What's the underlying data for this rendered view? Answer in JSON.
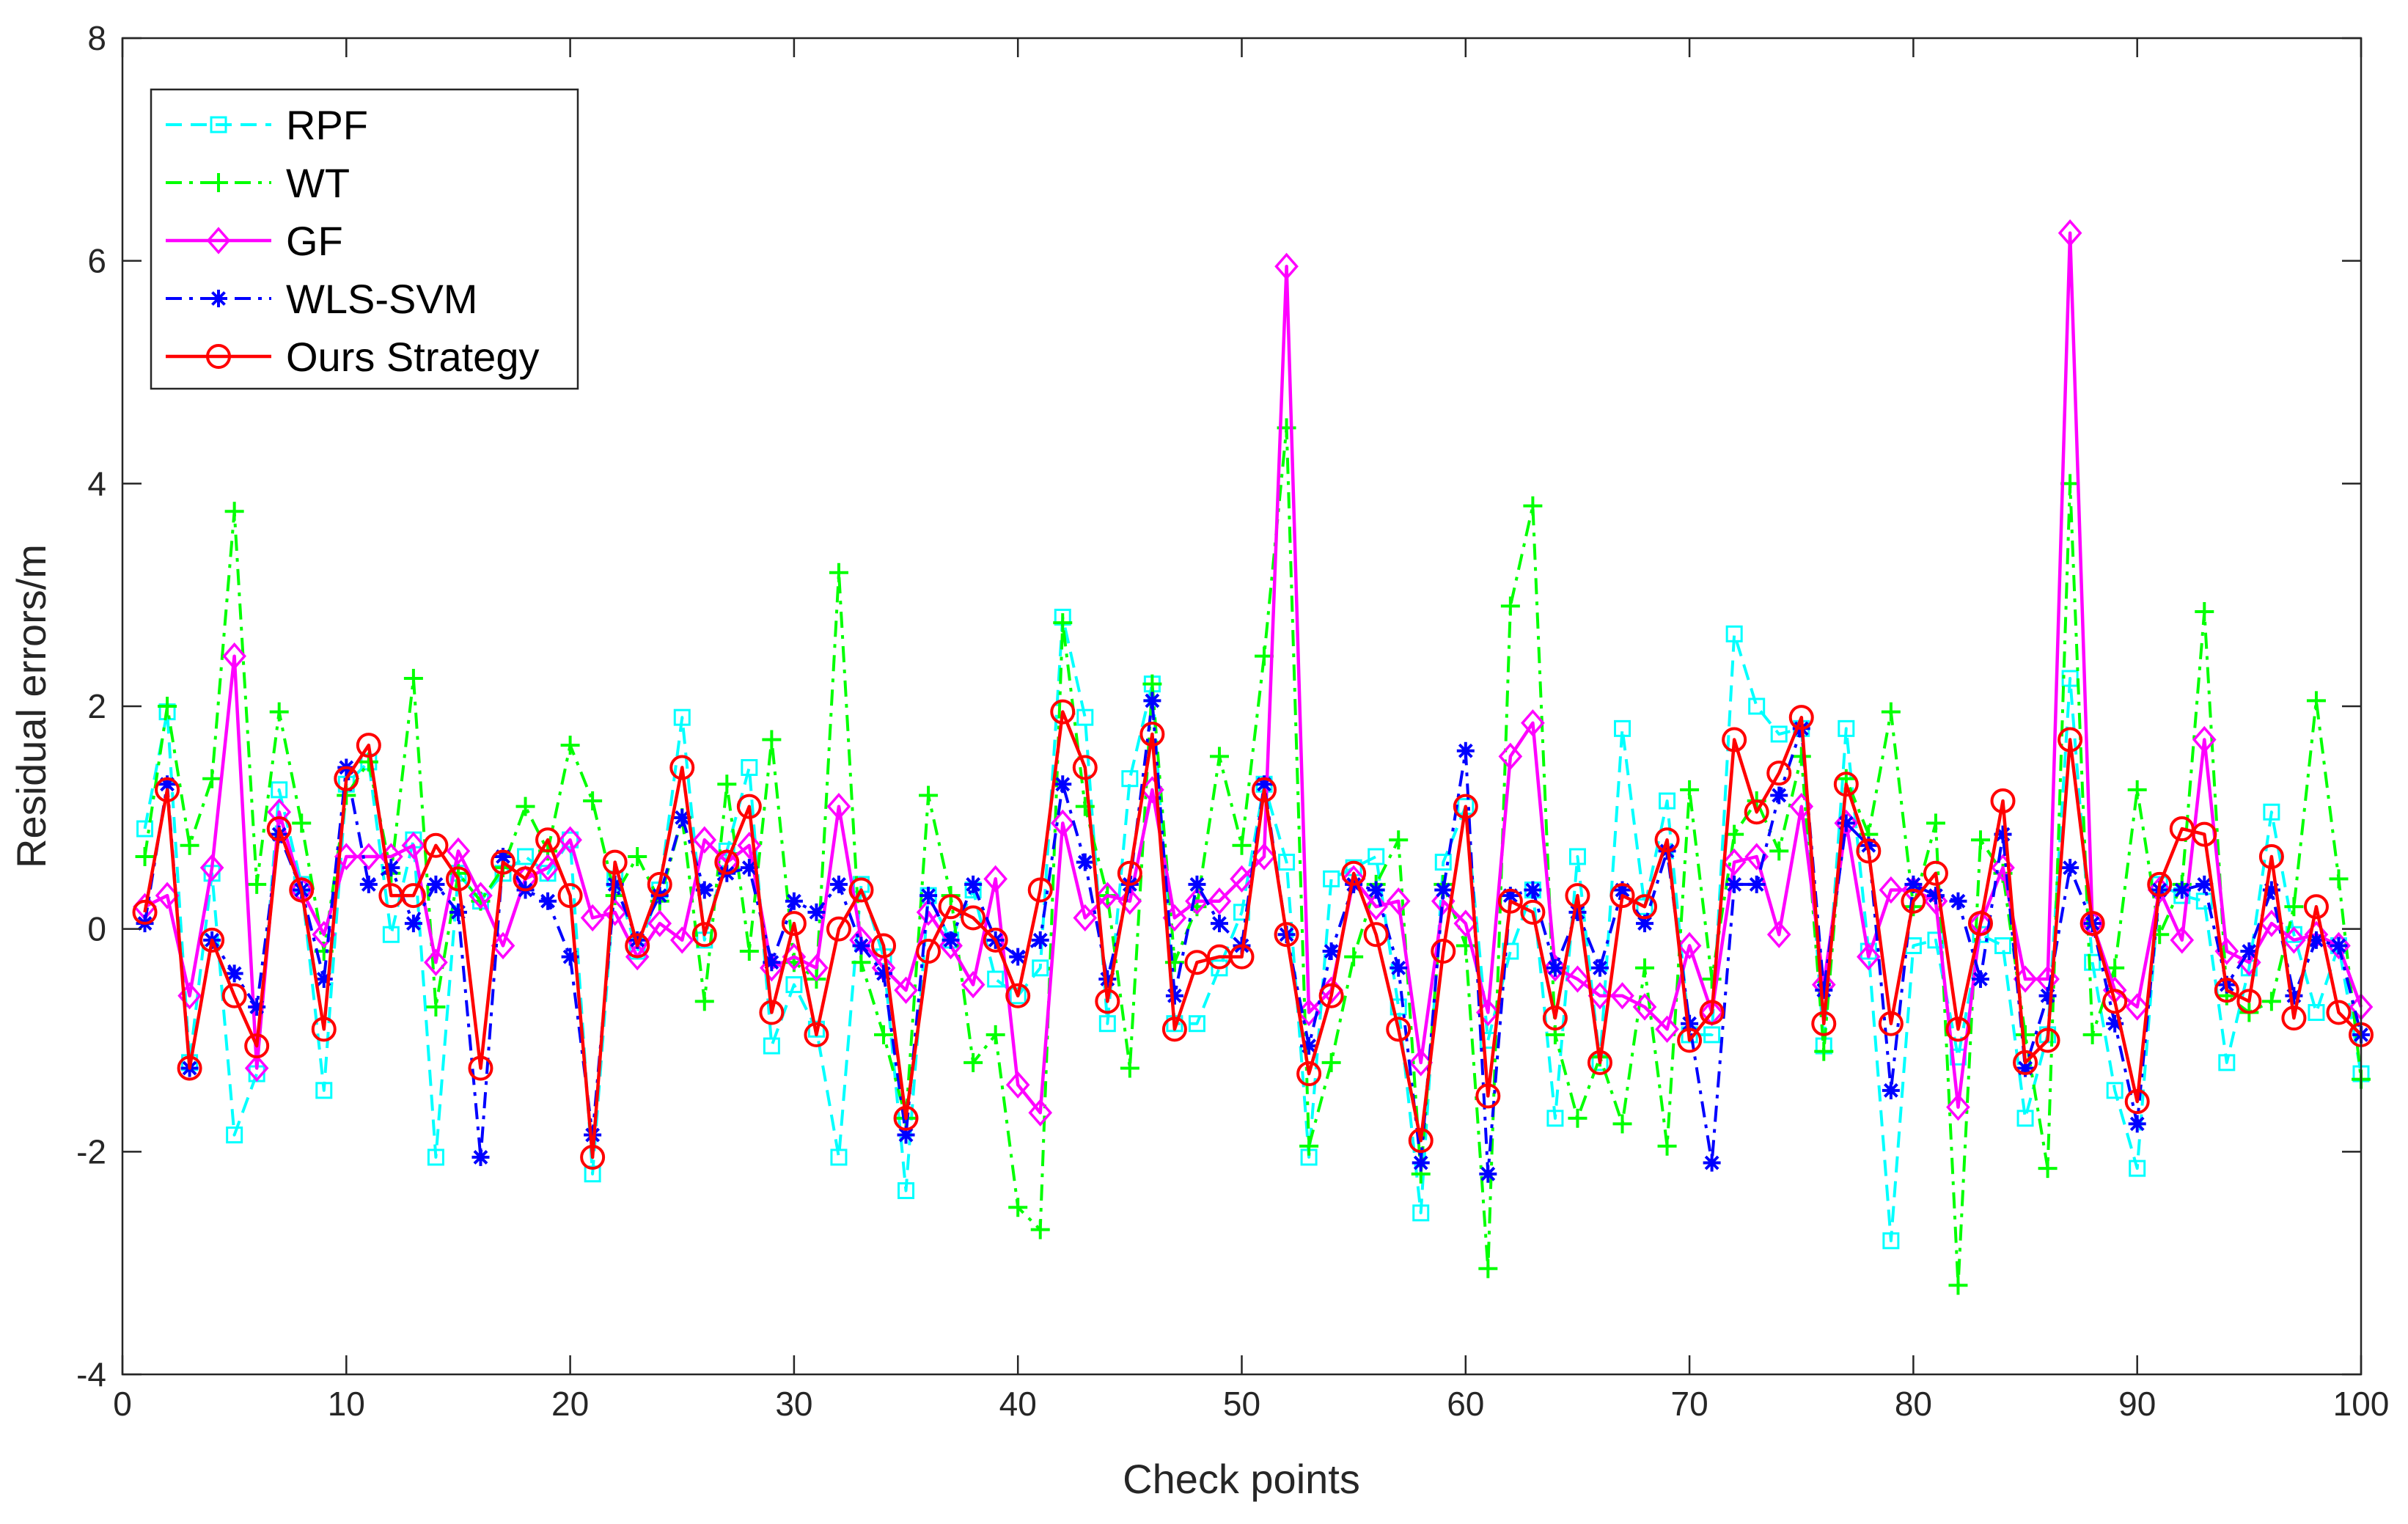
{
  "chart_data": {
    "type": "line",
    "title": "",
    "xlabel": "Check points",
    "ylabel": "Residual errors/m",
    "xlim": [
      0,
      100
    ],
    "ylim": [
      -4,
      8
    ],
    "xticks": [
      0,
      10,
      20,
      30,
      40,
      50,
      60,
      70,
      80,
      90,
      100
    ],
    "yticks": [
      -4,
      -2,
      0,
      2,
      4,
      6,
      8
    ],
    "xtick_labels": [
      "0",
      "10",
      "20",
      "30",
      "40",
      "50",
      "60",
      "70",
      "80",
      "90",
      "100"
    ],
    "ytick_labels": [
      "-4",
      "-2",
      "0",
      "2",
      "4",
      "6",
      "8"
    ],
    "grid": false,
    "legend_position": "top-left",
    "x": [
      1,
      2,
      3,
      4,
      5,
      6,
      7,
      8,
      9,
      10,
      11,
      12,
      13,
      14,
      15,
      16,
      17,
      18,
      19,
      20,
      21,
      22,
      23,
      24,
      25,
      26,
      27,
      28,
      29,
      30,
      31,
      32,
      33,
      34,
      35,
      36,
      37,
      38,
      39,
      40,
      41,
      42,
      43,
      44,
      45,
      46,
      47,
      48,
      49,
      50,
      51,
      52,
      53,
      54,
      55,
      56,
      57,
      58,
      59,
      60,
      61,
      62,
      63,
      64,
      65,
      66,
      67,
      68,
      69,
      70,
      71,
      72,
      73,
      74,
      75,
      76,
      77,
      78,
      79,
      80,
      81,
      82,
      83,
      84,
      85,
      86,
      87,
      88,
      89,
      90,
      91,
      92,
      93,
      94,
      95,
      96,
      97,
      98,
      99,
      100
    ],
    "series": [
      {
        "name": "RPF",
        "color": "#00ffff",
        "line": "dashed",
        "marker": "square",
        "values": [
          0.9,
          1.95,
          -1.2,
          0.5,
          -1.85,
          -1.3,
          1.25,
          0.4,
          -1.45,
          1.3,
          1.5,
          -0.05,
          0.8,
          -2.05,
          0.5,
          0.25,
          0.5,
          0.65,
          0.5,
          0.8,
          -2.2,
          0.45,
          -0.2,
          0.35,
          1.9,
          -0.1,
          0.7,
          1.45,
          -1.05,
          -0.5,
          -0.9,
          -2.05,
          0.4,
          -0.25,
          -2.35,
          0.3,
          -0.1,
          0.35,
          -0.45,
          -0.6,
          -0.35,
          2.8,
          1.9,
          -0.85,
          1.35,
          2.2,
          -0.85,
          -0.85,
          -0.35,
          0.15,
          1.3,
          0.6,
          -2.05,
          0.45,
          0.55,
          0.65,
          -0.7,
          -2.55,
          0.6,
          1.1,
          -1.0,
          -0.2,
          0.35,
          -1.7,
          0.65,
          -1.2,
          1.8,
          0.2,
          1.15,
          -0.95,
          -0.95,
          2.65,
          2.0,
          1.75,
          1.8,
          -1.05,
          1.8,
          -0.2,
          -2.8,
          -0.15,
          -0.1,
          -1.15,
          -0.05,
          -0.15,
          -1.7,
          -0.95,
          2.25,
          -0.3,
          -1.45,
          -2.15,
          0.4,
          0.3,
          0.25,
          -1.2,
          -0.35,
          1.05,
          -0.05,
          -0.75,
          -0.15,
          -1.3
        ]
      },
      {
        "name": "WT",
        "color": "#00ff00",
        "line": "dashdot",
        "marker": "plus",
        "values": [
          0.65,
          2.0,
          0.75,
          1.35,
          3.75,
          0.4,
          1.95,
          0.95,
          -0.2,
          1.2,
          1.5,
          0.5,
          2.25,
          -0.7,
          0.5,
          0.25,
          0.55,
          1.1,
          0.7,
          1.65,
          1.15,
          0.3,
          0.65,
          0.25,
          1.0,
          -0.65,
          1.3,
          -0.2,
          1.7,
          -0.3,
          -0.45,
          3.2,
          -0.3,
          -0.95,
          -1.7,
          1.2,
          0.3,
          -1.2,
          -0.95,
          -2.5,
          -2.7,
          2.75,
          1.1,
          0.3,
          -1.25,
          2.2,
          -0.3,
          0.2,
          1.55,
          0.75,
          2.45,
          4.5,
          -1.95,
          -1.2,
          -0.25,
          0.4,
          0.8,
          -2.2,
          0.4,
          -0.15,
          -3.05,
          2.9,
          3.8,
          -0.95,
          -1.7,
          -1.15,
          -1.75,
          -0.35,
          -1.95,
          1.25,
          -0.45,
          0.85,
          1.15,
          0.7,
          1.55,
          -1.1,
          1.35,
          0.85,
          1.95,
          0.2,
          0.95,
          -3.2,
          0.8,
          0.5,
          -0.95,
          -2.15,
          4.0,
          -0.95,
          -0.35,
          1.25,
          -0.05,
          0.4,
          2.85,
          -0.6,
          -0.75,
          -0.65,
          0.2,
          2.05,
          0.45,
          -1.35
        ]
      },
      {
        "name": "GF",
        "color": "#ff00ff",
        "line": "solid",
        "marker": "diamond",
        "values": [
          0.2,
          0.3,
          -0.6,
          0.55,
          2.45,
          -1.25,
          1.05,
          0.35,
          -0.05,
          0.65,
          0.65,
          0.65,
          0.75,
          -0.3,
          0.7,
          0.3,
          -0.15,
          0.45,
          0.55,
          0.8,
          0.1,
          0.15,
          -0.25,
          0.05,
          -0.1,
          0.8,
          0.6,
          0.75,
          -0.35,
          -0.25,
          -0.35,
          1.1,
          -0.1,
          -0.35,
          -0.55,
          0.15,
          -0.15,
          -0.5,
          0.45,
          -1.4,
          -1.65,
          0.95,
          0.1,
          0.3,
          0.25,
          1.25,
          0.1,
          0.25,
          0.25,
          0.45,
          0.65,
          5.95,
          -0.75,
          -0.55,
          0.45,
          0.2,
          0.25,
          -1.2,
          0.25,
          0.05,
          -0.75,
          1.55,
          1.85,
          -0.35,
          -0.45,
          -0.6,
          -0.6,
          -0.7,
          -0.9,
          -0.15,
          -0.75,
          0.6,
          0.65,
          -0.05,
          1.1,
          -0.5,
          0.95,
          -0.25,
          0.35,
          0.35,
          0.25,
          -1.6,
          0.05,
          0.55,
          -0.45,
          -0.45,
          6.25,
          0.05,
          -0.55,
          -0.7,
          0.35,
          -0.1,
          1.7,
          -0.2,
          -0.3,
          0.05,
          -0.1,
          -0.05,
          -0.15,
          -0.7
        ]
      },
      {
        "name": "WLS-SVM",
        "color": "#0000ff",
        "line": "dashdot",
        "marker": "asterisk",
        "values": [
          0.05,
          1.3,
          -1.25,
          -0.1,
          -0.4,
          -0.7,
          0.85,
          0.35,
          -0.45,
          1.45,
          0.4,
          0.55,
          0.05,
          0.4,
          0.15,
          -2.05,
          0.65,
          0.35,
          0.25,
          -0.25,
          -1.85,
          0.4,
          -0.1,
          0.3,
          1.0,
          0.35,
          0.5,
          0.55,
          -0.3,
          0.25,
          0.15,
          0.4,
          -0.15,
          -0.4,
          -1.85,
          0.3,
          -0.1,
          0.4,
          -0.1,
          -0.25,
          -0.1,
          1.3,
          0.6,
          -0.45,
          0.4,
          2.05,
          -0.6,
          0.4,
          0.05,
          -0.15,
          1.3,
          -0.05,
          -1.05,
          -0.2,
          0.4,
          0.35,
          -0.35,
          -2.1,
          0.35,
          1.6,
          -2.2,
          0.3,
          0.35,
          -0.35,
          0.15,
          -0.35,
          0.35,
          0.05,
          0.7,
          -0.85,
          -2.1,
          0.4,
          0.4,
          1.2,
          1.8,
          -0.55,
          0.95,
          0.75,
          -1.45,
          0.4,
          0.3,
          0.25,
          -0.45,
          0.85,
          -1.25,
          -0.6,
          0.55,
          0.05,
          -0.85,
          -1.75,
          0.35,
          0.35,
          0.4,
          -0.5,
          -0.2,
          0.35,
          -0.6,
          -0.1,
          -0.15,
          -0.95
        ]
      },
      {
        "name": "Ours Strategy",
        "color": "#ff0000",
        "line": "solid",
        "marker": "circle",
        "values": [
          0.15,
          1.25,
          -1.25,
          -0.1,
          -0.6,
          -1.05,
          0.9,
          0.35,
          -0.9,
          1.35,
          1.65,
          0.3,
          0.3,
          0.75,
          0.45,
          -1.25,
          0.6,
          0.45,
          0.8,
          0.3,
          -2.05,
          0.6,
          -0.15,
          0.4,
          1.45,
          -0.05,
          0.6,
          1.1,
          -0.75,
          0.05,
          -0.95,
          0.0,
          0.35,
          -0.15,
          -1.7,
          -0.2,
          0.2,
          0.1,
          -0.1,
          -0.6,
          0.35,
          1.95,
          1.45,
          -0.65,
          0.5,
          1.75,
          -0.9,
          -0.3,
          -0.25,
          -0.25,
          1.25,
          -0.05,
          -1.3,
          -0.6,
          0.5,
          -0.05,
          -0.9,
          -1.9,
          -0.2,
          1.1,
          -1.5,
          0.25,
          0.15,
          -0.8,
          0.3,
          -1.2,
          0.3,
          0.2,
          0.8,
          -1.0,
          -0.75,
          1.7,
          1.05,
          1.4,
          1.9,
          -0.85,
          1.3,
          0.7,
          -0.85,
          0.25,
          0.5,
          -0.9,
          0.05,
          1.15,
          -1.2,
          -1.0,
          1.7,
          0.05,
          -0.65,
          -1.55,
          0.4,
          0.9,
          0.85,
          -0.55,
          -0.65,
          0.65,
          -0.8,
          0.2,
          -0.75,
          -0.95
        ]
      }
    ]
  }
}
